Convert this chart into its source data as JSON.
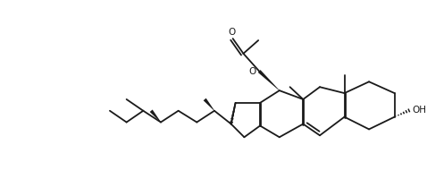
{
  "bg_color": "#ffffff",
  "line_color": "#1a1a1a",
  "lw": 1.3,
  "figsize": [
    4.78,
    2.19
  ],
  "dpi": 100,
  "oh_text": "OH",
  "o_text": "O",
  "font_size": 7.5
}
